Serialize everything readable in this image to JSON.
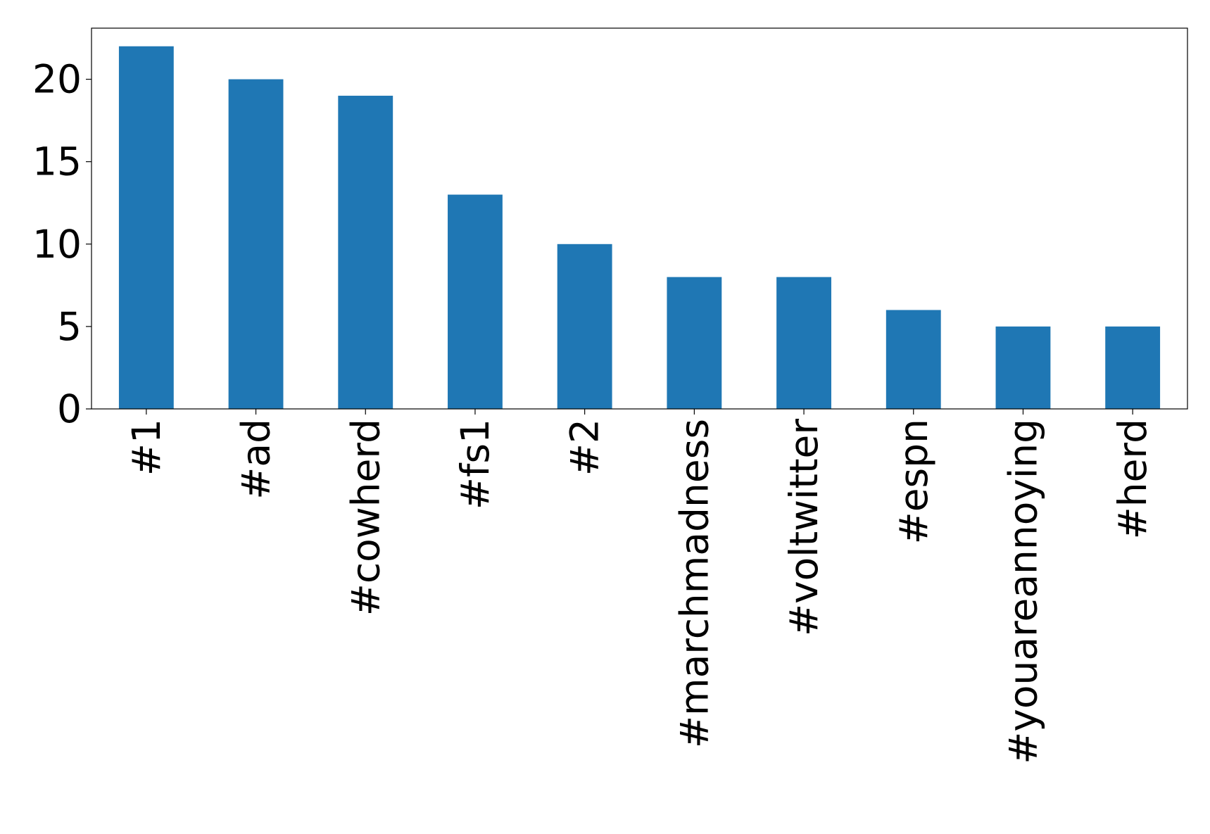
{
  "chart_data": {
    "type": "bar",
    "categories": [
      "#1",
      "#ad",
      "#cowherd",
      "#fs1",
      "#2",
      "#marchmadness",
      "#voltwitter",
      "#espn",
      "#youareannoying",
      "#herd"
    ],
    "values": [
      22,
      20,
      19,
      13,
      10,
      8,
      8,
      6,
      5,
      5
    ],
    "color": "#1f77b4",
    "ylim": [
      0,
      23.1
    ],
    "yticks": [
      0,
      5,
      10,
      15,
      20
    ],
    "grid": false
  }
}
